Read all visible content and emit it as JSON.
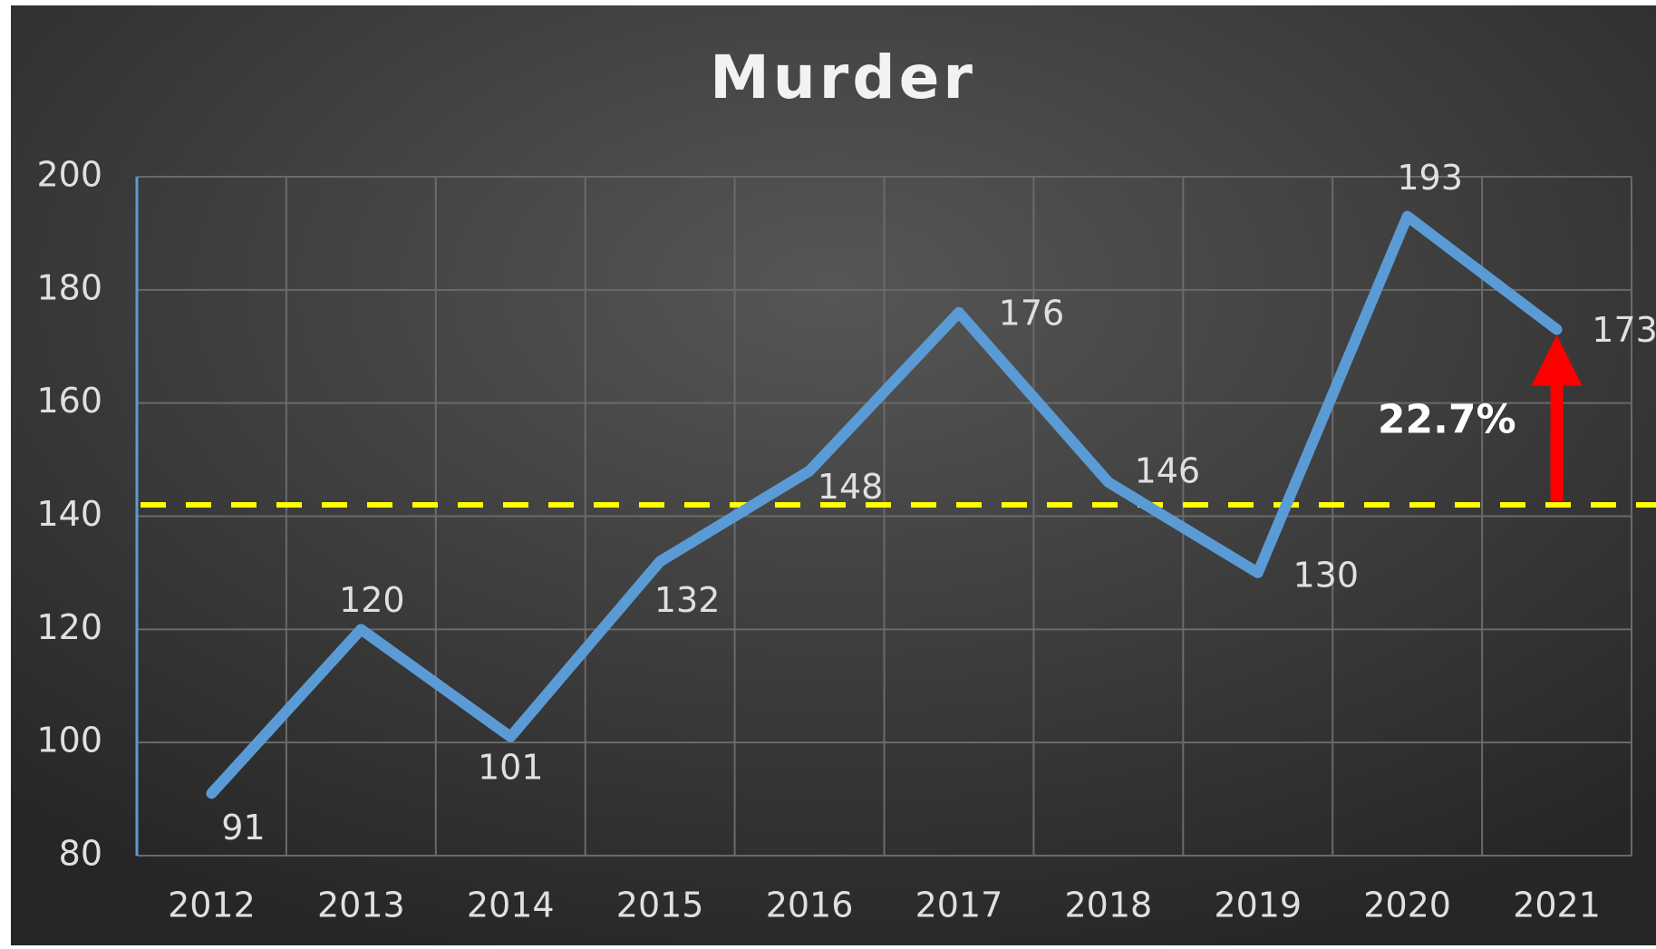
{
  "chart_data": {
    "type": "line",
    "title": "Murder",
    "categories": [
      "2012",
      "2013",
      "2014",
      "2015",
      "2016",
      "2017",
      "2018",
      "2019",
      "2020",
      "2021"
    ],
    "series": [
      {
        "name": "Murder",
        "color": "#5b9bd5",
        "values": [
          91,
          120,
          101,
          132,
          148,
          176,
          146,
          130,
          193,
          173
        ]
      }
    ],
    "ylim": [
      80,
      200
    ],
    "yticks": [
      80,
      100,
      120,
      140,
      160,
      180,
      200
    ],
    "grid": true,
    "reference_line": {
      "value": 142,
      "color": "#ffff00"
    },
    "annotation": {
      "text": "22.7%",
      "color": "#ff0000"
    }
  }
}
